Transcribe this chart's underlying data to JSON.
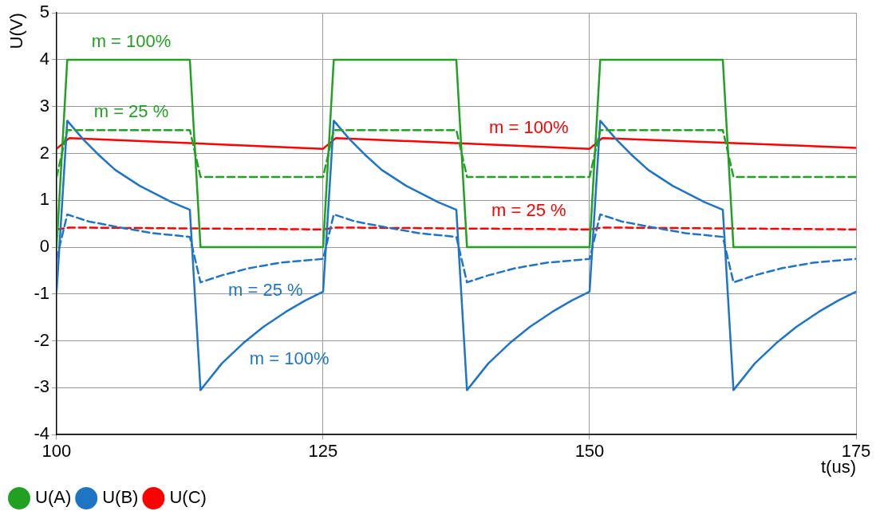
{
  "chart_data": {
    "type": "line",
    "xlabel": "t(us)",
    "ylabel": "U(V)",
    "xlim": [
      100,
      175
    ],
    "xticks": [
      100,
      125,
      150,
      175
    ],
    "ylim": [
      -4,
      5
    ],
    "yticks": [
      -4,
      -3,
      -2,
      -1,
      0,
      1,
      2,
      3,
      4,
      5
    ],
    "grid": true,
    "legend": "bottom left",
    "marker": "none",
    "series": [
      {
        "name": "U(A)",
        "color": "#22a022",
        "line_style": "solid",
        "x": [
          100,
          101,
          112.5,
          113.5,
          125,
          126,
          137.5,
          138.5,
          150,
          151,
          162.5,
          163.5,
          175
        ],
        "values": [
          0,
          4,
          4,
          0,
          0,
          4,
          4,
          0,
          0,
          4,
          4,
          0,
          0
        ]
      },
      {
        "color": "#22a022",
        "line_style": "dashed",
        "x": [
          100,
          101,
          112.5,
          113.5,
          125,
          126,
          137.5,
          138.5,
          150,
          151,
          162.5,
          163.5,
          175
        ],
        "values": [
          1.5,
          2.5,
          2.5,
          1.5,
          1.5,
          2.5,
          2.5,
          1.5,
          1.5,
          2.5,
          2.5,
          1.5,
          1.5
        ]
      },
      {
        "name": "U(B)",
        "color": "#1f74c4",
        "line_style": "solid",
        "x": [
          100,
          101,
          102.5,
          103.9,
          105.5,
          107.8,
          110.8,
          112.5,
          113.5,
          115.5,
          117.5,
          119.4,
          121.5,
          123.3,
          125,
          126,
          127.5,
          128.9,
          130.5,
          132.8,
          135.8,
          137.5,
          138.5,
          140.5,
          142.5,
          144.4,
          146.5,
          148.3,
          150,
          151,
          152.5,
          153.9,
          155.5,
          157.8,
          160.8,
          162.5,
          163.5,
          165.5,
          167.5,
          169.4,
          171.5,
          173.3,
          175
        ],
        "values": [
          -0.95,
          2.7,
          2.3,
          1.98,
          1.65,
          1.31,
          0.96,
          0.8,
          -3.05,
          -2.48,
          -2.05,
          -1.7,
          -1.38,
          -1.14,
          -0.95,
          2.7,
          2.3,
          1.98,
          1.65,
          1.31,
          0.96,
          0.8,
          -3.05,
          -2.48,
          -2.05,
          -1.7,
          -1.38,
          -1.14,
          -0.95,
          2.7,
          2.3,
          1.98,
          1.65,
          1.31,
          0.96,
          0.8,
          -3.05,
          -2.48,
          -2.05,
          -1.7,
          -1.38,
          -1.14,
          -0.95
        ]
      },
      {
        "color": "#1f74c4",
        "line_style": "dashed",
        "x": [
          100,
          101,
          103,
          106,
          109,
          112.5,
          113.5,
          115.5,
          118,
          121,
          125,
          126,
          128,
          131,
          134,
          137.5,
          138.5,
          140.5,
          143,
          146,
          150,
          151,
          153,
          156,
          159,
          162.5,
          163.5,
          165.5,
          168,
          171,
          175
        ],
        "values": [
          -0.25,
          0.7,
          0.55,
          0.42,
          0.3,
          0.22,
          -0.75,
          -0.6,
          -0.45,
          -0.33,
          -0.25,
          0.7,
          0.55,
          0.42,
          0.3,
          0.22,
          -0.75,
          -0.6,
          -0.45,
          -0.33,
          -0.25,
          0.7,
          0.55,
          0.42,
          0.3,
          0.22,
          -0.75,
          -0.6,
          -0.45,
          -0.33,
          -0.25
        ]
      },
      {
        "name": "U(C)",
        "color": "#ff0000",
        "line_style": "solid",
        "x": [
          100,
          101.2,
          125,
          126.2,
          150,
          151.2,
          175
        ],
        "values": [
          2.1,
          2.33,
          2.1,
          2.33,
          2.1,
          2.33,
          2.12
        ]
      },
      {
        "color": "#ff0000",
        "line_style": "dashed",
        "x": [
          100,
          101.2,
          125,
          126.2,
          150,
          151.2,
          175
        ],
        "values": [
          0.38,
          0.42,
          0.38,
          0.42,
          0.38,
          0.42,
          0.38
        ]
      }
    ],
    "annotations": [
      {
        "text": "m = 100%",
        "x": 107,
        "y": 4
      },
      {
        "text": "m = 25 %",
        "x": 107,
        "y": 2.5
      },
      {
        "text": "m = 100%",
        "x": 144.3,
        "y": 2.16
      },
      {
        "text": "m = 25 %",
        "x": 144.3,
        "y": 0.4
      },
      {
        "text": "m = 25 %",
        "x": 115.5,
        "y": -0.6
      },
      {
        "text": "m = 100%",
        "x": 117.5,
        "y": -2.05
      }
    ]
  }
}
